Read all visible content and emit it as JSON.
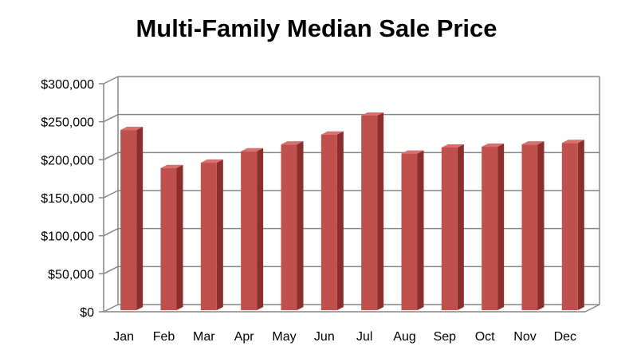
{
  "chart_data": {
    "type": "bar",
    "title": "Multi-Family Median Sale Price",
    "categories": [
      "Jan",
      "Feb",
      "Mar",
      "Apr",
      "May",
      "Jun",
      "Jul",
      "Aug",
      "Sep",
      "Oct",
      "Nov",
      "Dec"
    ],
    "values": [
      237000,
      187000,
      194000,
      209000,
      218000,
      231000,
      256000,
      206000,
      214000,
      215000,
      218000,
      220000
    ],
    "ylim": [
      0,
      300000
    ],
    "yticks": [
      0,
      50000,
      100000,
      150000,
      200000,
      250000,
      300000
    ],
    "ytick_labels": [
      "$0",
      "$50,000",
      "$100,000",
      "$150,000",
      "$200,000",
      "$250,000",
      "$300,000"
    ],
    "grid": true,
    "legend": "none",
    "colors": {
      "bar": "#c0504d",
      "bar_side": "#8c2e2c",
      "bar_top": "#d9706d",
      "grid": "#868686"
    }
  }
}
